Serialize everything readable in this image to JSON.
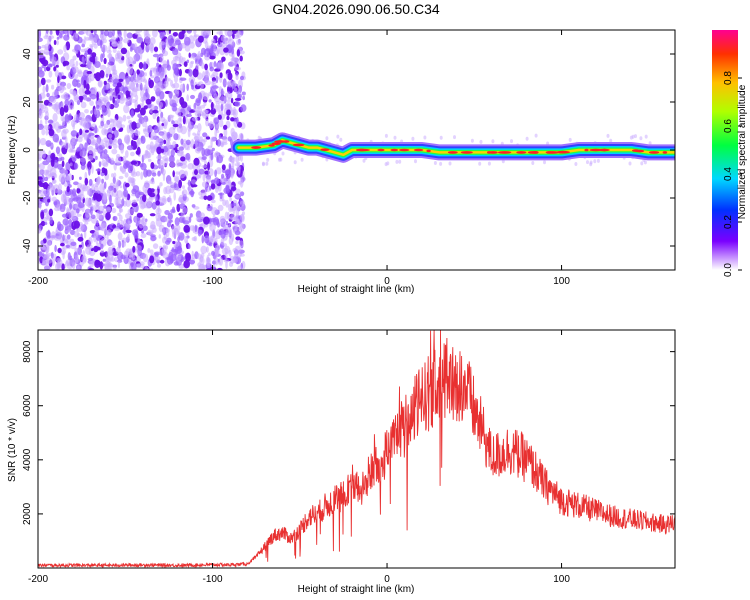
{
  "title": "GN04.2026.090.06.50.C34",
  "chart_data": [
    {
      "type": "heatmap",
      "xlabel": "Height of straight line (km)",
      "ylabel": "Frequency (Hz)",
      "xlim": [
        -200,
        165
      ],
      "ylim": [
        -50,
        50
      ],
      "xticks": [
        -200,
        -100,
        0,
        100
      ],
      "yticks": [
        -40,
        -20,
        0,
        20,
        40
      ],
      "colorbar": {
        "label": "Normalized spectral amplitude",
        "range": [
          0,
          1
        ],
        "ticks": [
          0.0,
          0.2,
          0.4,
          0.6,
          0.8
        ]
      },
      "noise_region_x": [
        -200,
        -82
      ],
      "signal_trace": {
        "x": [
          -85,
          -75,
          -65,
          -60,
          -55,
          -50,
          -45,
          -40,
          -35,
          -30,
          -25,
          -20,
          -15,
          -10,
          0,
          10,
          20,
          30,
          40,
          50,
          60,
          70,
          80,
          90,
          100,
          110,
          120,
          130,
          140,
          150,
          160,
          165
        ],
        "freq": [
          1,
          1,
          2,
          4,
          3,
          2,
          1,
          1,
          0,
          -1,
          -2,
          0,
          0,
          0,
          0,
          0,
          0,
          -1,
          -1,
          -1,
          -1,
          -1,
          -1,
          -1,
          -1,
          0,
          0,
          0,
          0,
          -1,
          -1,
          -1
        ]
      }
    },
    {
      "type": "line",
      "xlabel": "Height of straight line (km)",
      "ylabel": "SNR (10 * v/v)",
      "xlim": [
        -200,
        165
      ],
      "ylim": [
        0,
        8800
      ],
      "xticks": [
        -200,
        -100,
        0,
        100
      ],
      "yticks": [
        2000,
        4000,
        6000,
        8000
      ],
      "color": "#e83030",
      "series": [
        {
          "x": [
            -200,
            -180,
            -160,
            -140,
            -120,
            -100,
            -90,
            -80,
            -75,
            -70,
            -65,
            -60,
            -55,
            -50,
            -45,
            -40,
            -35,
            -30,
            -25,
            -20,
            -15,
            -10,
            -5,
            0,
            5,
            10,
            15,
            20,
            25,
            30,
            35,
            40,
            45,
            50,
            55,
            60,
            65,
            70,
            75,
            80,
            85,
            90,
            95,
            100,
            110,
            120,
            130,
            140,
            150,
            160,
            165
          ],
          "y": [
            100,
            100,
            100,
            110,
            100,
            120,
            120,
            150,
            400,
            800,
            1200,
            1300,
            1100,
            1400,
            1900,
            2000,
            2300,
            2500,
            2700,
            3200,
            2800,
            3500,
            3800,
            4300,
            4800,
            5200,
            5700,
            6300,
            6500,
            6900,
            7000,
            6900,
            6700,
            5800,
            5000,
            4100,
            4200,
            4400,
            4200,
            4000,
            3600,
            3100,
            2800,
            2500,
            2300,
            2100,
            1900,
            1800,
            1700,
            1600,
            1700
          ]
        }
      ]
    }
  ]
}
